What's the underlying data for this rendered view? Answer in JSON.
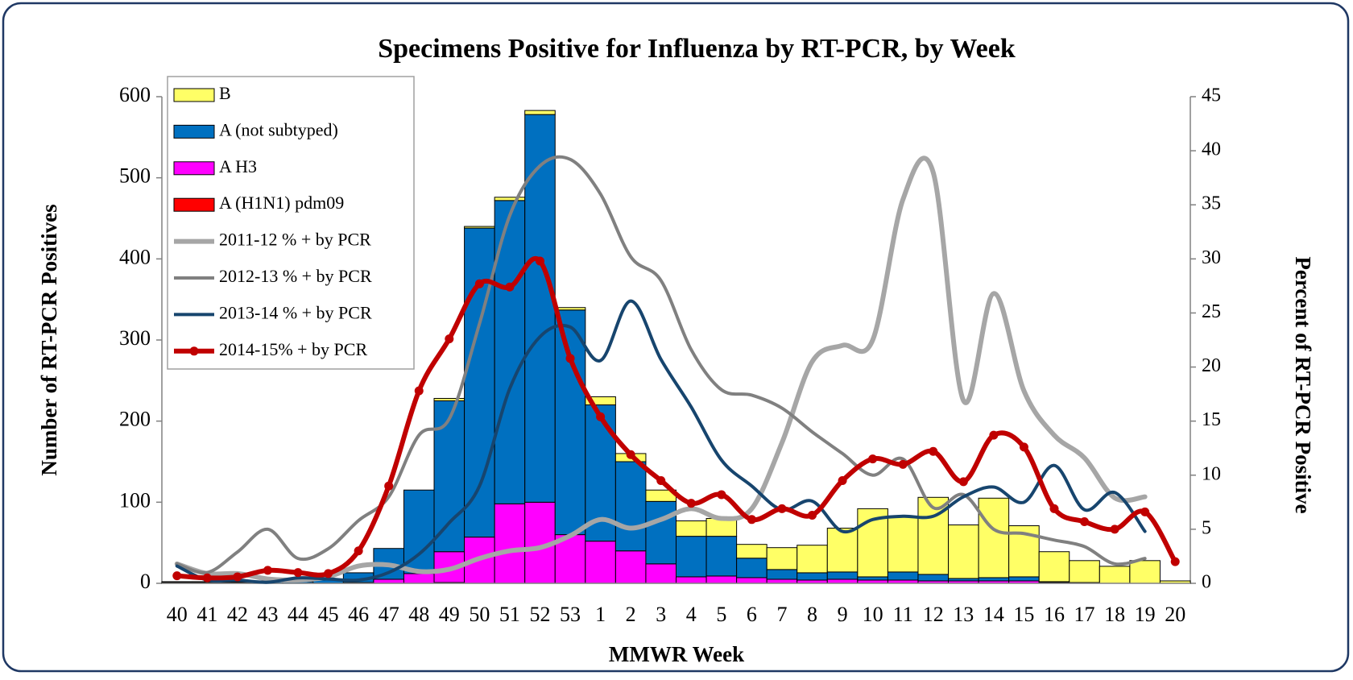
{
  "chart_data": {
    "type": "bar",
    "title": "Specimens Positive for Influenza by RT-PCR, by Week",
    "x_label": "MMWR Week",
    "y_label": "Number of RT-PCR Positives",
    "y2_label": "Percent of RT-PCR Positive",
    "categories": [
      "40",
      "41",
      "42",
      "43",
      "44",
      "45",
      "46",
      "47",
      "48",
      "49",
      "50",
      "51",
      "52",
      "53",
      "1",
      "2",
      "3",
      "4",
      "5",
      "6",
      "7",
      "8",
      "9",
      "10",
      "11",
      "12",
      "13",
      "14",
      "15",
      "16",
      "17",
      "18",
      "19",
      "20"
    ],
    "ylim": [
      0,
      600
    ],
    "yticks": [
      0,
      100,
      200,
      300,
      400,
      500,
      600
    ],
    "y2lim": [
      0,
      45
    ],
    "y2ticks": [
      0,
      5,
      10,
      15,
      20,
      25,
      30,
      35,
      40,
      45
    ],
    "legend": "upper left",
    "series": [
      {
        "name": "B",
        "type": "bar",
        "color": "#ffff66",
        "values": [
          1,
          1,
          1,
          1,
          1,
          1,
          0,
          0,
          0,
          3,
          2,
          4,
          5,
          3,
          10,
          10,
          14,
          19,
          22,
          17,
          27,
          34,
          54,
          84,
          69,
          95,
          66,
          98,
          63,
          37,
          27,
          21,
          28,
          3
        ]
      },
      {
        "name": "A (not subtyped)",
        "type": "bar",
        "color": "#0070c0",
        "values": [
          1,
          1,
          1,
          2,
          2,
          4,
          12,
          38,
          103,
          186,
          381,
          374,
          478,
          277,
          168,
          110,
          77,
          50,
          49,
          24,
          12,
          9,
          9,
          4,
          10,
          8,
          3,
          4,
          5,
          1,
          1,
          0,
          0,
          0
        ]
      },
      {
        "name": "A H3",
        "type": "bar",
        "color": "#ff00ff",
        "values": [
          0,
          0,
          0,
          0,
          0,
          0,
          1,
          5,
          12,
          38,
          57,
          98,
          100,
          60,
          52,
          40,
          24,
          8,
          9,
          7,
          5,
          4,
          5,
          4,
          4,
          3,
          3,
          3,
          3,
          1,
          0,
          0,
          0,
          0
        ]
      },
      {
        "name": "A (H1N1) pdm09",
        "type": "bar",
        "color": "#ff0000",
        "values": [
          0,
          0,
          0,
          0,
          0,
          0,
          0,
          0,
          0,
          1,
          0,
          0,
          0,
          0,
          0,
          0,
          0,
          0,
          0,
          0,
          0,
          0,
          0,
          0,
          0,
          0,
          0,
          0,
          0,
          0,
          0,
          0,
          0,
          0
        ]
      },
      {
        "name": "2011-12 % + by PCR",
        "type": "line",
        "axis": "y2",
        "color": "#a6a6a6",
        "width": 6,
        "values": [
          1.8,
          0.9,
          0.9,
          0.4,
          0.3,
          0.6,
          1.6,
          1.7,
          1.1,
          1.3,
          2.3,
          3.0,
          3.3,
          4.4,
          5.9,
          5.1,
          5.9,
          6.9,
          6.0,
          6.9,
          13,
          20.5,
          22,
          22.5,
          35.5,
          38,
          16.9,
          26.8,
          17.8,
          13.7,
          11.6,
          7.9,
          8.0,
          null
        ]
      },
      {
        "name": "2012-13 % + by PCR",
        "type": "line",
        "axis": "y2",
        "color": "#808080",
        "width": 4,
        "values": [
          1.8,
          1.0,
          2.9,
          5.0,
          2.3,
          3.2,
          5.8,
          8.0,
          13.7,
          15.2,
          24,
          34,
          38.6,
          39.2,
          36,
          30.2,
          28,
          21.6,
          17.9,
          17.4,
          16.2,
          14.0,
          12.0,
          10.0,
          11.5,
          7.0,
          8.2,
          5.0,
          4.6,
          4.0,
          3.4,
          1.8,
          2.3,
          null
        ]
      },
      {
        "name": "2013-14 % + by PCR",
        "type": "line",
        "axis": "y2",
        "color": "#17456e",
        "width": 4,
        "values": [
          1.6,
          0.3,
          0.3,
          0.1,
          0.5,
          0.4,
          0.3,
          1.0,
          2.7,
          5.6,
          9.0,
          18,
          22.8,
          23.7,
          20.6,
          26.1,
          20.7,
          16.3,
          11.4,
          9.0,
          6.8,
          7.6,
          4.8,
          5.9,
          6.2,
          6.2,
          8.0,
          8.9,
          7.5,
          10.9,
          6.8,
          8.4,
          4.8,
          null
        ]
      },
      {
        "name": "2014-15% + by PCR",
        "type": "line",
        "axis": "y2",
        "color": "#c00000",
        "width": 6,
        "markers": true,
        "values": [
          0.7,
          0.5,
          0.6,
          1.2,
          1.0,
          0.9,
          3.0,
          9.0,
          17.8,
          22.6,
          27.7,
          27.4,
          29.8,
          20.8,
          15.4,
          11.9,
          9.5,
          7.4,
          8.2,
          5.9,
          6.9,
          6.3,
          9.5,
          11.5,
          11.0,
          12.2,
          9.4,
          13.7,
          12.6,
          6.9,
          5.7,
          5.0,
          6.6,
          2.0
        ]
      }
    ]
  }
}
